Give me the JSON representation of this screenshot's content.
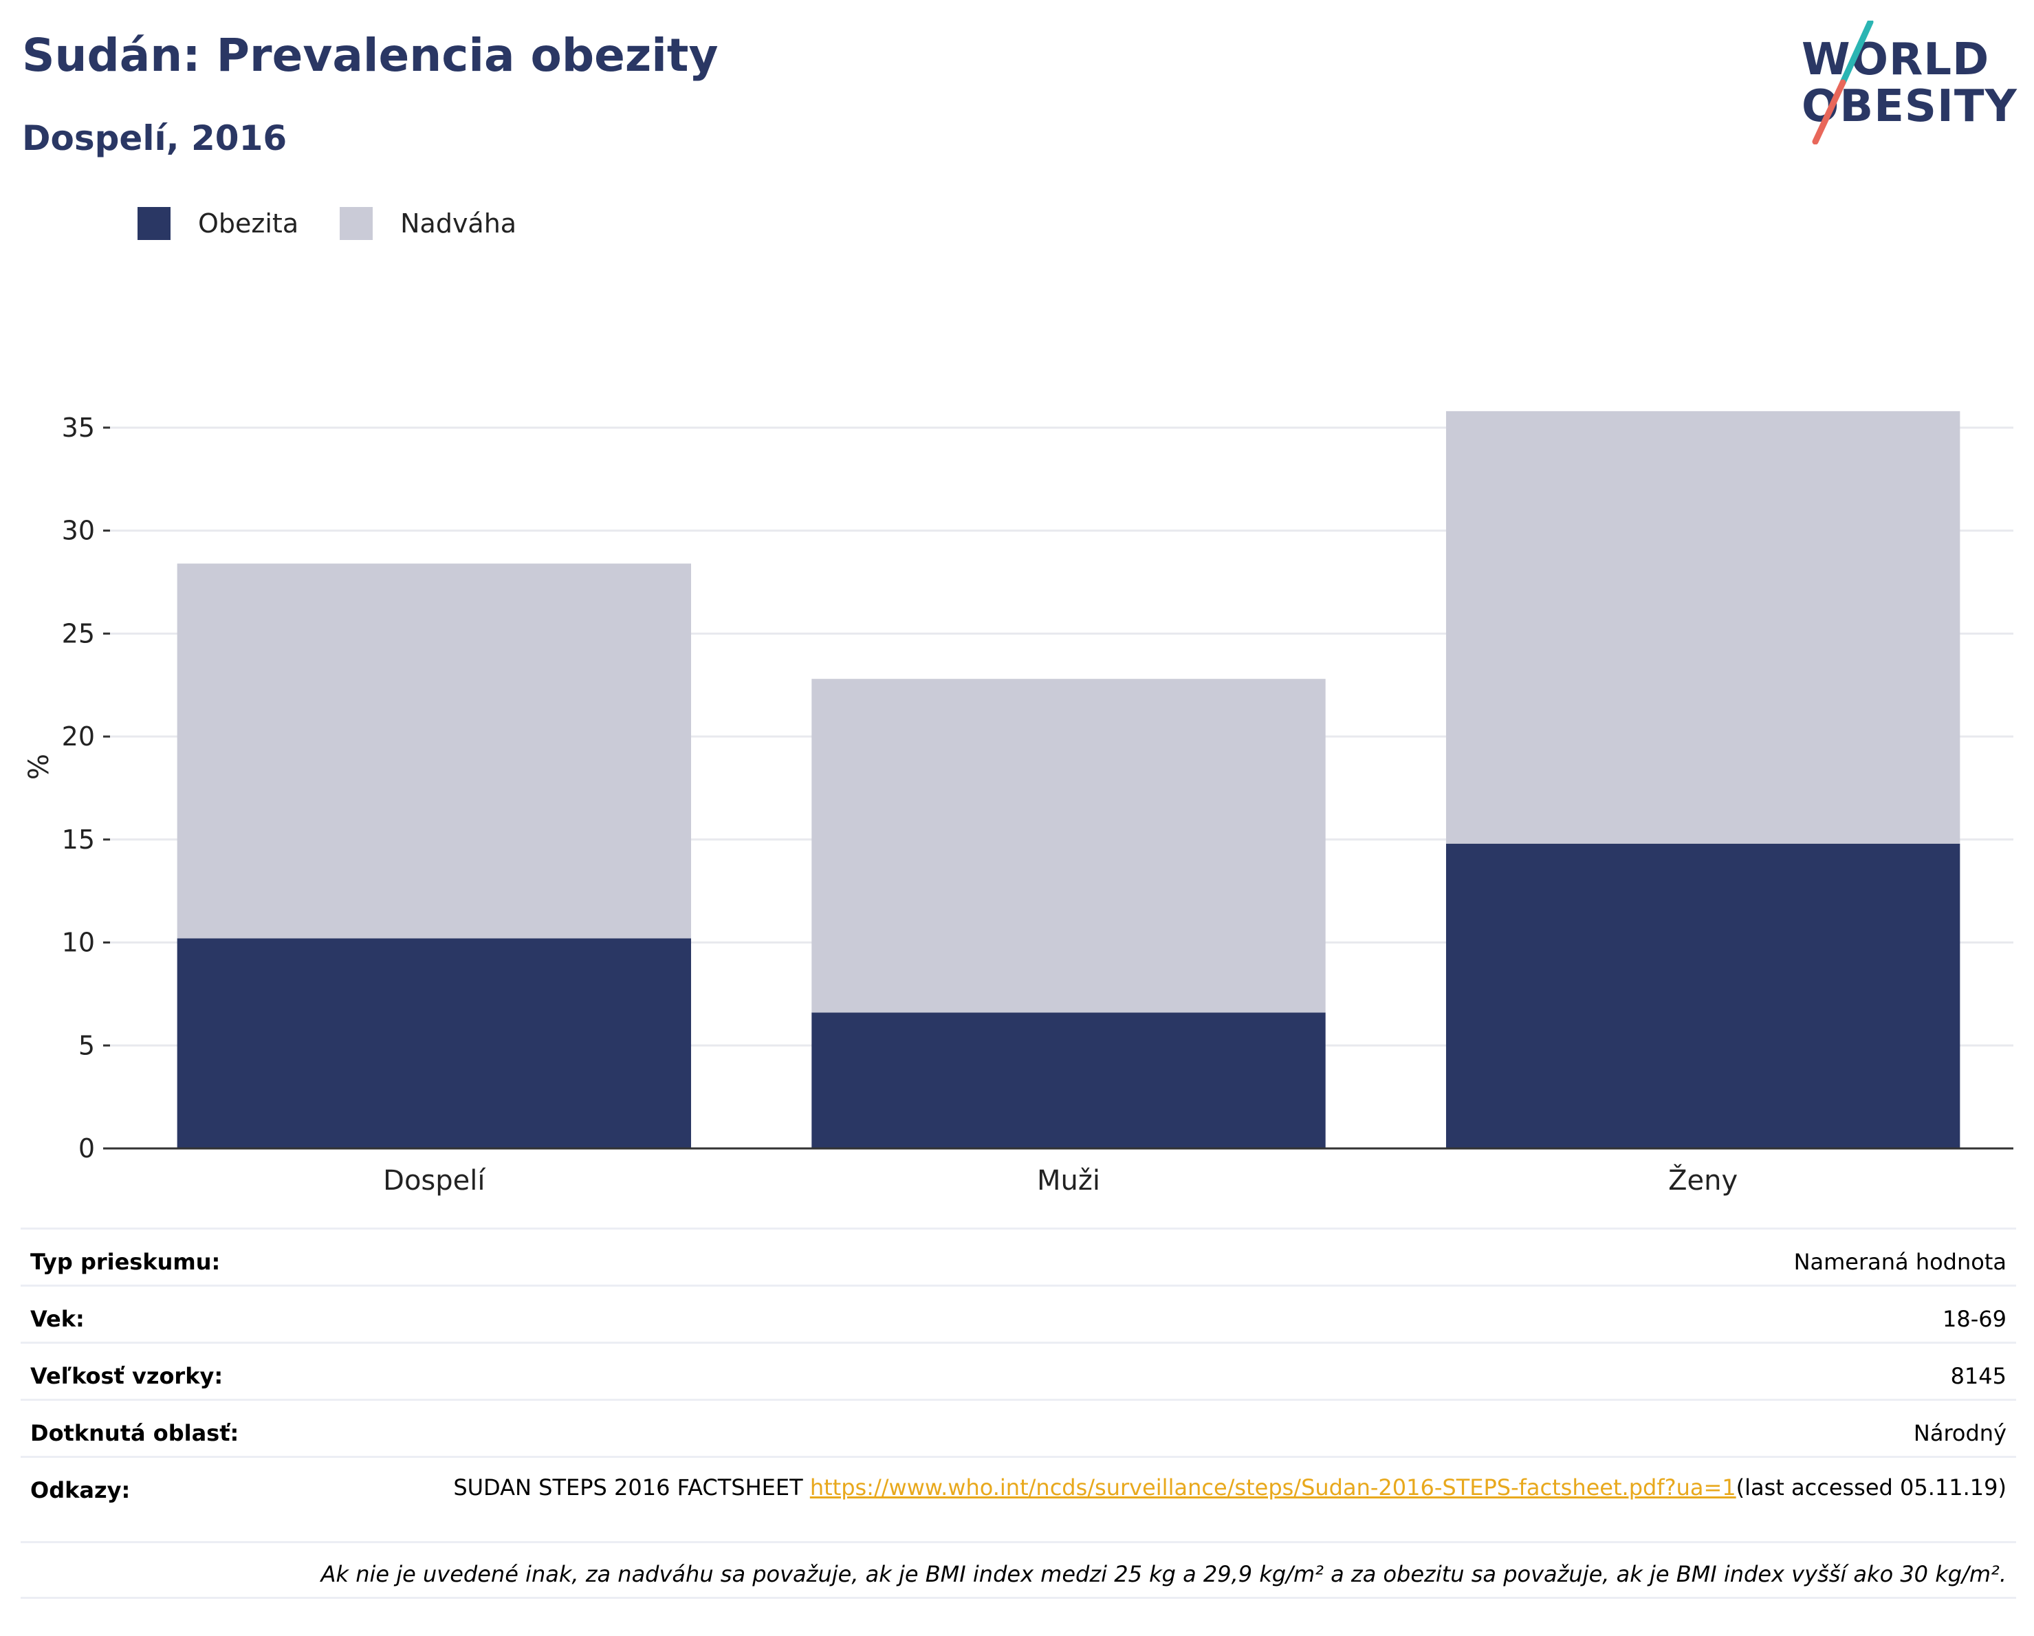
{
  "title": "Sudán: Prevalencia obezity",
  "subtitle": "Dospelí, 2016",
  "logo": {
    "line1": "WORLD",
    "line2": "OBESITY",
    "slash_colors": [
      "#2bb5b3",
      "#e8675a"
    ]
  },
  "colors": {
    "obezita": "#2a3764",
    "nadvaha": "#cacbd7",
    "grid": "#e8e9ee",
    "axis": "#333333",
    "link": "#e8a81c"
  },
  "chart_data": {
    "type": "bar",
    "stacked": true,
    "categories": [
      "Dospelí",
      "Muži",
      "Ženy"
    ],
    "series": [
      {
        "name": "Obezita",
        "values": [
          10.2,
          6.6,
          14.8
        ]
      },
      {
        "name": "Nadváha",
        "values": [
          18.2,
          16.2,
          21.0
        ]
      }
    ],
    "ylabel": "%",
    "ylim": [
      0,
      38
    ],
    "yticks": [
      0,
      5,
      10,
      15,
      20,
      25,
      30,
      35
    ],
    "grid": true,
    "legend": "top-left"
  },
  "info": {
    "rows": [
      {
        "key": "Typ prieskumu:",
        "value": "Nameraná hodnota"
      },
      {
        "key": "Vek:",
        "value": "18-69"
      },
      {
        "key": "Veľkosť vzorky:",
        "value": "8145"
      },
      {
        "key": "Dotknutá oblasť:",
        "value": "Národný"
      }
    ],
    "references": {
      "key": "Odkazy:",
      "prefix": "SUDAN STEPS 2016 FACTSHEET ",
      "link": "https://www.who.int/ncds/surveillance/steps/Sudan-2016-STEPS-factsheet.pdf?ua=1",
      "suffix": "(last accessed 05.11.19)"
    },
    "footnote": "Ak nie je uvedené inak, za nadváhu sa považuje, ak je BMI index medzi 25 kg a 29,9 kg/m² a za obezitu sa považuje, ak je BMI index vyšší ako 30 kg/m²."
  }
}
